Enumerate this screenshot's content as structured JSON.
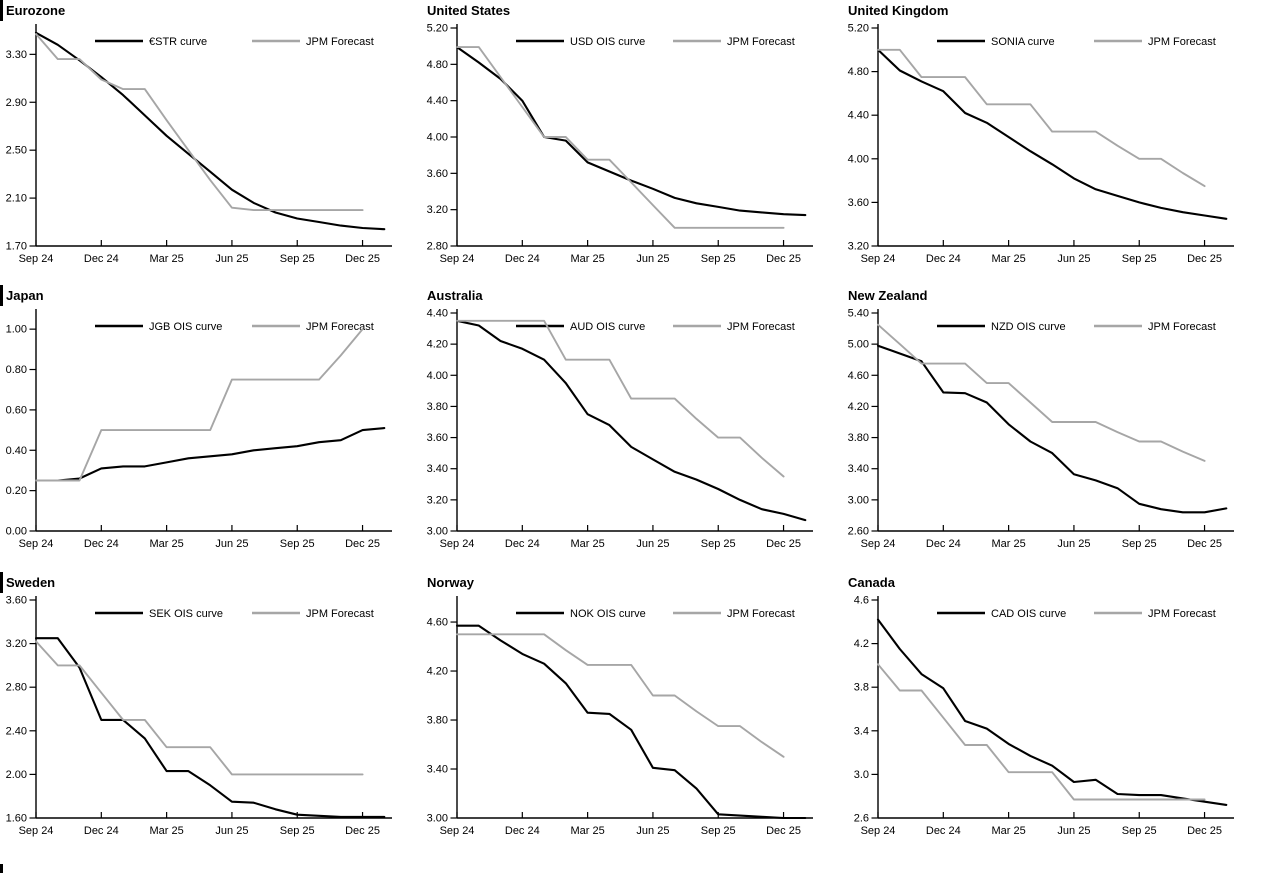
{
  "page": {
    "background": "#ffffff",
    "series_color": "#000000",
    "forecast_color": "#a6a6a6",
    "edge_mark_color": "#000000",
    "edge_marks_on_rows": [
      "Eurozone",
      "Japan",
      "Sweden"
    ],
    "bottom_left_edge_mark": true
  },
  "x_axis": {
    "tick_labels": [
      "Sep 24",
      "Dec 24",
      "Mar 25",
      "Jun 25",
      "Sep 25",
      "Dec 25"
    ],
    "start": "Sep 24",
    "interval": "monthly",
    "curve_points": 17,
    "forecast_points": 16
  },
  "chart_data": [
    {
      "id": "eurozone",
      "type": "line",
      "title": "Eurozone",
      "edge_mark": true,
      "ylim": [
        1.7,
        3.52
      ],
      "grid": false,
      "legend_position": "top-center",
      "y_tick_values": [
        1.7,
        2.1,
        2.5,
        2.9,
        3.3
      ],
      "y_tick_labels": [
        "1.70",
        "2.10",
        "2.50",
        "2.90",
        "3.30"
      ],
      "series": [
        {
          "name": "€STR curve",
          "color": "#000000",
          "values": [
            3.48,
            3.38,
            3.25,
            3.11,
            2.96,
            2.79,
            2.62,
            2.47,
            2.32,
            2.17,
            2.06,
            1.98,
            1.93,
            1.9,
            1.87,
            1.85,
            1.84
          ]
        },
        {
          "name": "JPM Forecast",
          "color": "#a6a6a6",
          "values": [
            3.47,
            3.26,
            3.26,
            3.09,
            3.01,
            3.01,
            2.75,
            2.5,
            2.25,
            2.02,
            2.0,
            2.0,
            2.0,
            2.0,
            2.0,
            2.0
          ]
        }
      ]
    },
    {
      "id": "united-states",
      "type": "line",
      "title": "United States",
      "edge_mark": false,
      "ylim": [
        2.8,
        5.2
      ],
      "grid": false,
      "legend_position": "top-center",
      "y_tick_values": [
        2.8,
        3.2,
        3.6,
        4.0,
        4.4,
        4.8,
        5.2
      ],
      "y_tick_labels": [
        "2.80",
        "3.20",
        "3.60",
        "4.00",
        "4.40",
        "4.80",
        "5.20"
      ],
      "series": [
        {
          "name": "USD OIS curve",
          "color": "#000000",
          "values": [
            4.99,
            4.82,
            4.64,
            4.4,
            4.0,
            3.96,
            3.72,
            3.62,
            3.52,
            3.43,
            3.33,
            3.27,
            3.23,
            3.19,
            3.17,
            3.15,
            3.14
          ]
        },
        {
          "name": "JPM Forecast",
          "color": "#a6a6a6",
          "values": [
            4.99,
            4.99,
            4.66,
            4.33,
            4.0,
            4.0,
            3.75,
            3.75,
            3.5,
            3.25,
            3.0,
            3.0,
            3.0,
            3.0,
            3.0,
            3.0
          ]
        }
      ]
    },
    {
      "id": "united-kingdom",
      "type": "line",
      "title": "United Kingdom",
      "edge_mark": false,
      "ylim": [
        3.2,
        5.2
      ],
      "grid": false,
      "legend_position": "top-center",
      "y_tick_values": [
        3.2,
        3.6,
        4.0,
        4.4,
        4.8,
        5.2
      ],
      "y_tick_labels": [
        "3.20",
        "3.60",
        "4.00",
        "4.40",
        "4.80",
        "5.20"
      ],
      "series": [
        {
          "name": "SONIA curve",
          "color": "#000000",
          "values": [
            5.0,
            4.81,
            4.71,
            4.62,
            4.42,
            4.33,
            4.2,
            4.07,
            3.95,
            3.82,
            3.72,
            3.66,
            3.6,
            3.55,
            3.51,
            3.48,
            3.45
          ]
        },
        {
          "name": "JPM Forecast",
          "color": "#a6a6a6",
          "values": [
            5.0,
            5.0,
            4.75,
            4.75,
            4.75,
            4.5,
            4.5,
            4.5,
            4.25,
            4.25,
            4.25,
            4.12,
            4.0,
            4.0,
            3.87,
            3.75
          ]
        }
      ]
    },
    {
      "id": "japan",
      "type": "line",
      "title": "Japan",
      "edge_mark": true,
      "ylim": [
        0.0,
        1.08
      ],
      "grid": false,
      "legend_position": "top-center",
      "y_tick_values": [
        0.0,
        0.2,
        0.4,
        0.6,
        0.8,
        1.0
      ],
      "y_tick_labels": [
        "0.00",
        "0.20",
        "0.40",
        "0.60",
        "0.80",
        "1.00"
      ],
      "series": [
        {
          "name": "JGB OIS curve",
          "color": "#000000",
          "values": [
            0.25,
            0.25,
            0.26,
            0.31,
            0.32,
            0.32,
            0.34,
            0.36,
            0.37,
            0.38,
            0.4,
            0.41,
            0.42,
            0.44,
            0.45,
            0.5,
            0.51
          ]
        },
        {
          "name": "JPM Forecast",
          "color": "#a6a6a6",
          "values": [
            0.25,
            0.25,
            0.25,
            0.5,
            0.5,
            0.5,
            0.5,
            0.5,
            0.5,
            0.75,
            0.75,
            0.75,
            0.75,
            0.75,
            0.87,
            1.0
          ]
        }
      ]
    },
    {
      "id": "australia",
      "type": "line",
      "title": "Australia",
      "edge_mark": false,
      "ylim": [
        3.0,
        4.4
      ],
      "grid": false,
      "legend_position": "top-center",
      "y_tick_values": [
        3.0,
        3.2,
        3.4,
        3.6,
        3.8,
        4.0,
        4.2,
        4.4
      ],
      "y_tick_labels": [
        "3.00",
        "3.20",
        "3.40",
        "3.60",
        "3.80",
        "4.00",
        "4.20",
        "4.40"
      ],
      "series": [
        {
          "name": "AUD OIS curve",
          "color": "#000000",
          "values": [
            4.35,
            4.32,
            4.22,
            4.17,
            4.1,
            3.95,
            3.75,
            3.68,
            3.54,
            3.46,
            3.38,
            3.33,
            3.27,
            3.2,
            3.14,
            3.11,
            3.07
          ]
        },
        {
          "name": "JPM Forecast",
          "color": "#a6a6a6",
          "values": [
            4.35,
            4.35,
            4.35,
            4.35,
            4.35,
            4.1,
            4.1,
            4.1,
            3.85,
            3.85,
            3.85,
            3.72,
            3.6,
            3.6,
            3.47,
            3.35
          ]
        }
      ]
    },
    {
      "id": "new-zealand",
      "type": "line",
      "title": "New Zealand",
      "edge_mark": false,
      "ylim": [
        2.6,
        5.4
      ],
      "grid": false,
      "legend_position": "top-center",
      "y_tick_values": [
        2.6,
        3.0,
        3.4,
        3.8,
        4.2,
        4.6,
        5.0,
        5.4
      ],
      "y_tick_labels": [
        "2.60",
        "3.00",
        "3.40",
        "3.80",
        "4.20",
        "4.60",
        "5.00",
        "5.40"
      ],
      "series": [
        {
          "name": "NZD OIS curve",
          "color": "#000000",
          "values": [
            4.98,
            4.88,
            4.78,
            4.38,
            4.37,
            4.25,
            3.97,
            3.75,
            3.6,
            3.33,
            3.25,
            3.15,
            2.95,
            2.88,
            2.84,
            2.84,
            2.89
          ]
        },
        {
          "name": "JPM Forecast",
          "color": "#a6a6a6",
          "values": [
            5.25,
            5.0,
            4.75,
            4.75,
            4.75,
            4.5,
            4.5,
            4.25,
            4.0,
            4.0,
            4.0,
            3.87,
            3.75,
            3.75,
            3.62,
            3.5
          ]
        }
      ]
    },
    {
      "id": "sweden",
      "type": "line",
      "title": "Sweden",
      "edge_mark": true,
      "ylim": [
        1.6,
        3.6
      ],
      "grid": false,
      "legend_position": "top-center",
      "y_tick_values": [
        1.6,
        2.0,
        2.4,
        2.8,
        3.2,
        3.6
      ],
      "y_tick_labels": [
        "1.60",
        "2.00",
        "2.40",
        "2.80",
        "3.20",
        "3.60"
      ],
      "series": [
        {
          "name": "SEK OIS curve",
          "color": "#000000",
          "values": [
            3.25,
            3.25,
            2.98,
            2.5,
            2.5,
            2.33,
            2.03,
            2.03,
            1.9,
            1.75,
            1.74,
            1.68,
            1.63,
            1.62,
            1.61,
            1.61,
            1.61
          ]
        },
        {
          "name": "JPM Forecast",
          "color": "#a6a6a6",
          "values": [
            3.22,
            3.0,
            3.0,
            2.75,
            2.5,
            2.5,
            2.25,
            2.25,
            2.25,
            2.0,
            2.0,
            2.0,
            2.0,
            2.0,
            2.0,
            2.0
          ]
        }
      ]
    },
    {
      "id": "norway",
      "type": "line",
      "title": "Norway",
      "edge_mark": false,
      "ylim": [
        3.0,
        4.78
      ],
      "grid": false,
      "legend_position": "top-center",
      "y_tick_values": [
        3.0,
        3.4,
        3.8,
        4.2,
        4.6
      ],
      "y_tick_labels": [
        "3.00",
        "3.40",
        "3.80",
        "4.20",
        "4.60"
      ],
      "series": [
        {
          "name": "NOK OIS curve",
          "color": "#000000",
          "values": [
            4.57,
            4.57,
            4.45,
            4.34,
            4.26,
            4.1,
            3.86,
            3.85,
            3.72,
            3.41,
            3.39,
            3.24,
            3.03,
            3.02,
            3.01,
            3.0,
            3.0
          ]
        },
        {
          "name": "JPM Forecast",
          "color": "#a6a6a6",
          "values": [
            4.5,
            4.5,
            4.5,
            4.5,
            4.5,
            4.37,
            4.25,
            4.25,
            4.25,
            4.0,
            4.0,
            3.87,
            3.75,
            3.75,
            3.62,
            3.5
          ]
        }
      ]
    },
    {
      "id": "canada",
      "type": "line",
      "title": "Canada",
      "edge_mark": false,
      "ylim": [
        2.6,
        4.6
      ],
      "grid": false,
      "legend_position": "top-center",
      "y_tick_values": [
        2.6,
        3.0,
        3.4,
        3.8,
        4.2,
        4.6
      ],
      "y_tick_labels": [
        "2.6",
        "3.0",
        "3.4",
        "3.8",
        "4.2",
        "4.6"
      ],
      "series": [
        {
          "name": "CAD OIS curve",
          "color": "#000000",
          "values": [
            4.42,
            4.15,
            3.92,
            3.79,
            3.49,
            3.42,
            3.28,
            3.17,
            3.08,
            2.93,
            2.95,
            2.82,
            2.81,
            2.81,
            2.78,
            2.75,
            2.72
          ]
        },
        {
          "name": "JPM Forecast",
          "color": "#a6a6a6",
          "values": [
            4.01,
            3.77,
            3.77,
            3.52,
            3.27,
            3.27,
            3.02,
            3.02,
            3.02,
            2.77,
            2.77,
            2.77,
            2.77,
            2.77,
            2.77,
            2.77
          ]
        }
      ]
    }
  ]
}
